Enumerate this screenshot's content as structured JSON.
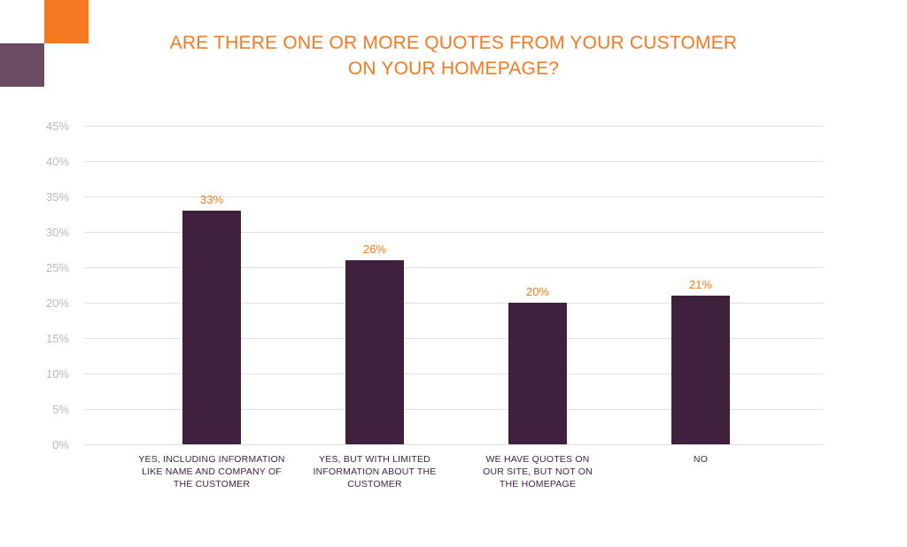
{
  "chart_data": {
    "type": "bar",
    "title_lines": [
      "ARE THERE ONE OR MORE QUOTES FROM YOUR CUSTOMER",
      "ON YOUR HOMEPAGE?"
    ],
    "categories": [
      [
        "YES, INCLUDING INFORMATION",
        "LIKE NAME AND COMPANY OF",
        "THE CUSTOMER"
      ],
      [
        "YES, BUT WITH LIMITED",
        "INFORMATION ABOUT THE",
        "CUSTOMER"
      ],
      [
        "WE HAVE QUOTES ON",
        "OUR SITE, BUT NOT ON",
        "THE HOMEPAGE"
      ],
      [
        "NO"
      ]
    ],
    "values": [
      33,
      26,
      20,
      21
    ],
    "data_labels": [
      "33%",
      "26%",
      "20%",
      "21%"
    ],
    "y_ticks": [
      "0%",
      "5%",
      "10%",
      "15%",
      "20%",
      "25%",
      "30%",
      "35%",
      "40%",
      "45%"
    ],
    "ylim": [
      0,
      45
    ],
    "grid": true,
    "legend": "none",
    "colors": {
      "bar": "#40213d",
      "title": "#f47920",
      "data_label": "#f47920",
      "tick_label": "#b8b8b8",
      "grid": "#e3e3e3",
      "category_label": "#3d2340",
      "accent_orange": "#f47920",
      "accent_purple": "#6b4a63"
    }
  }
}
